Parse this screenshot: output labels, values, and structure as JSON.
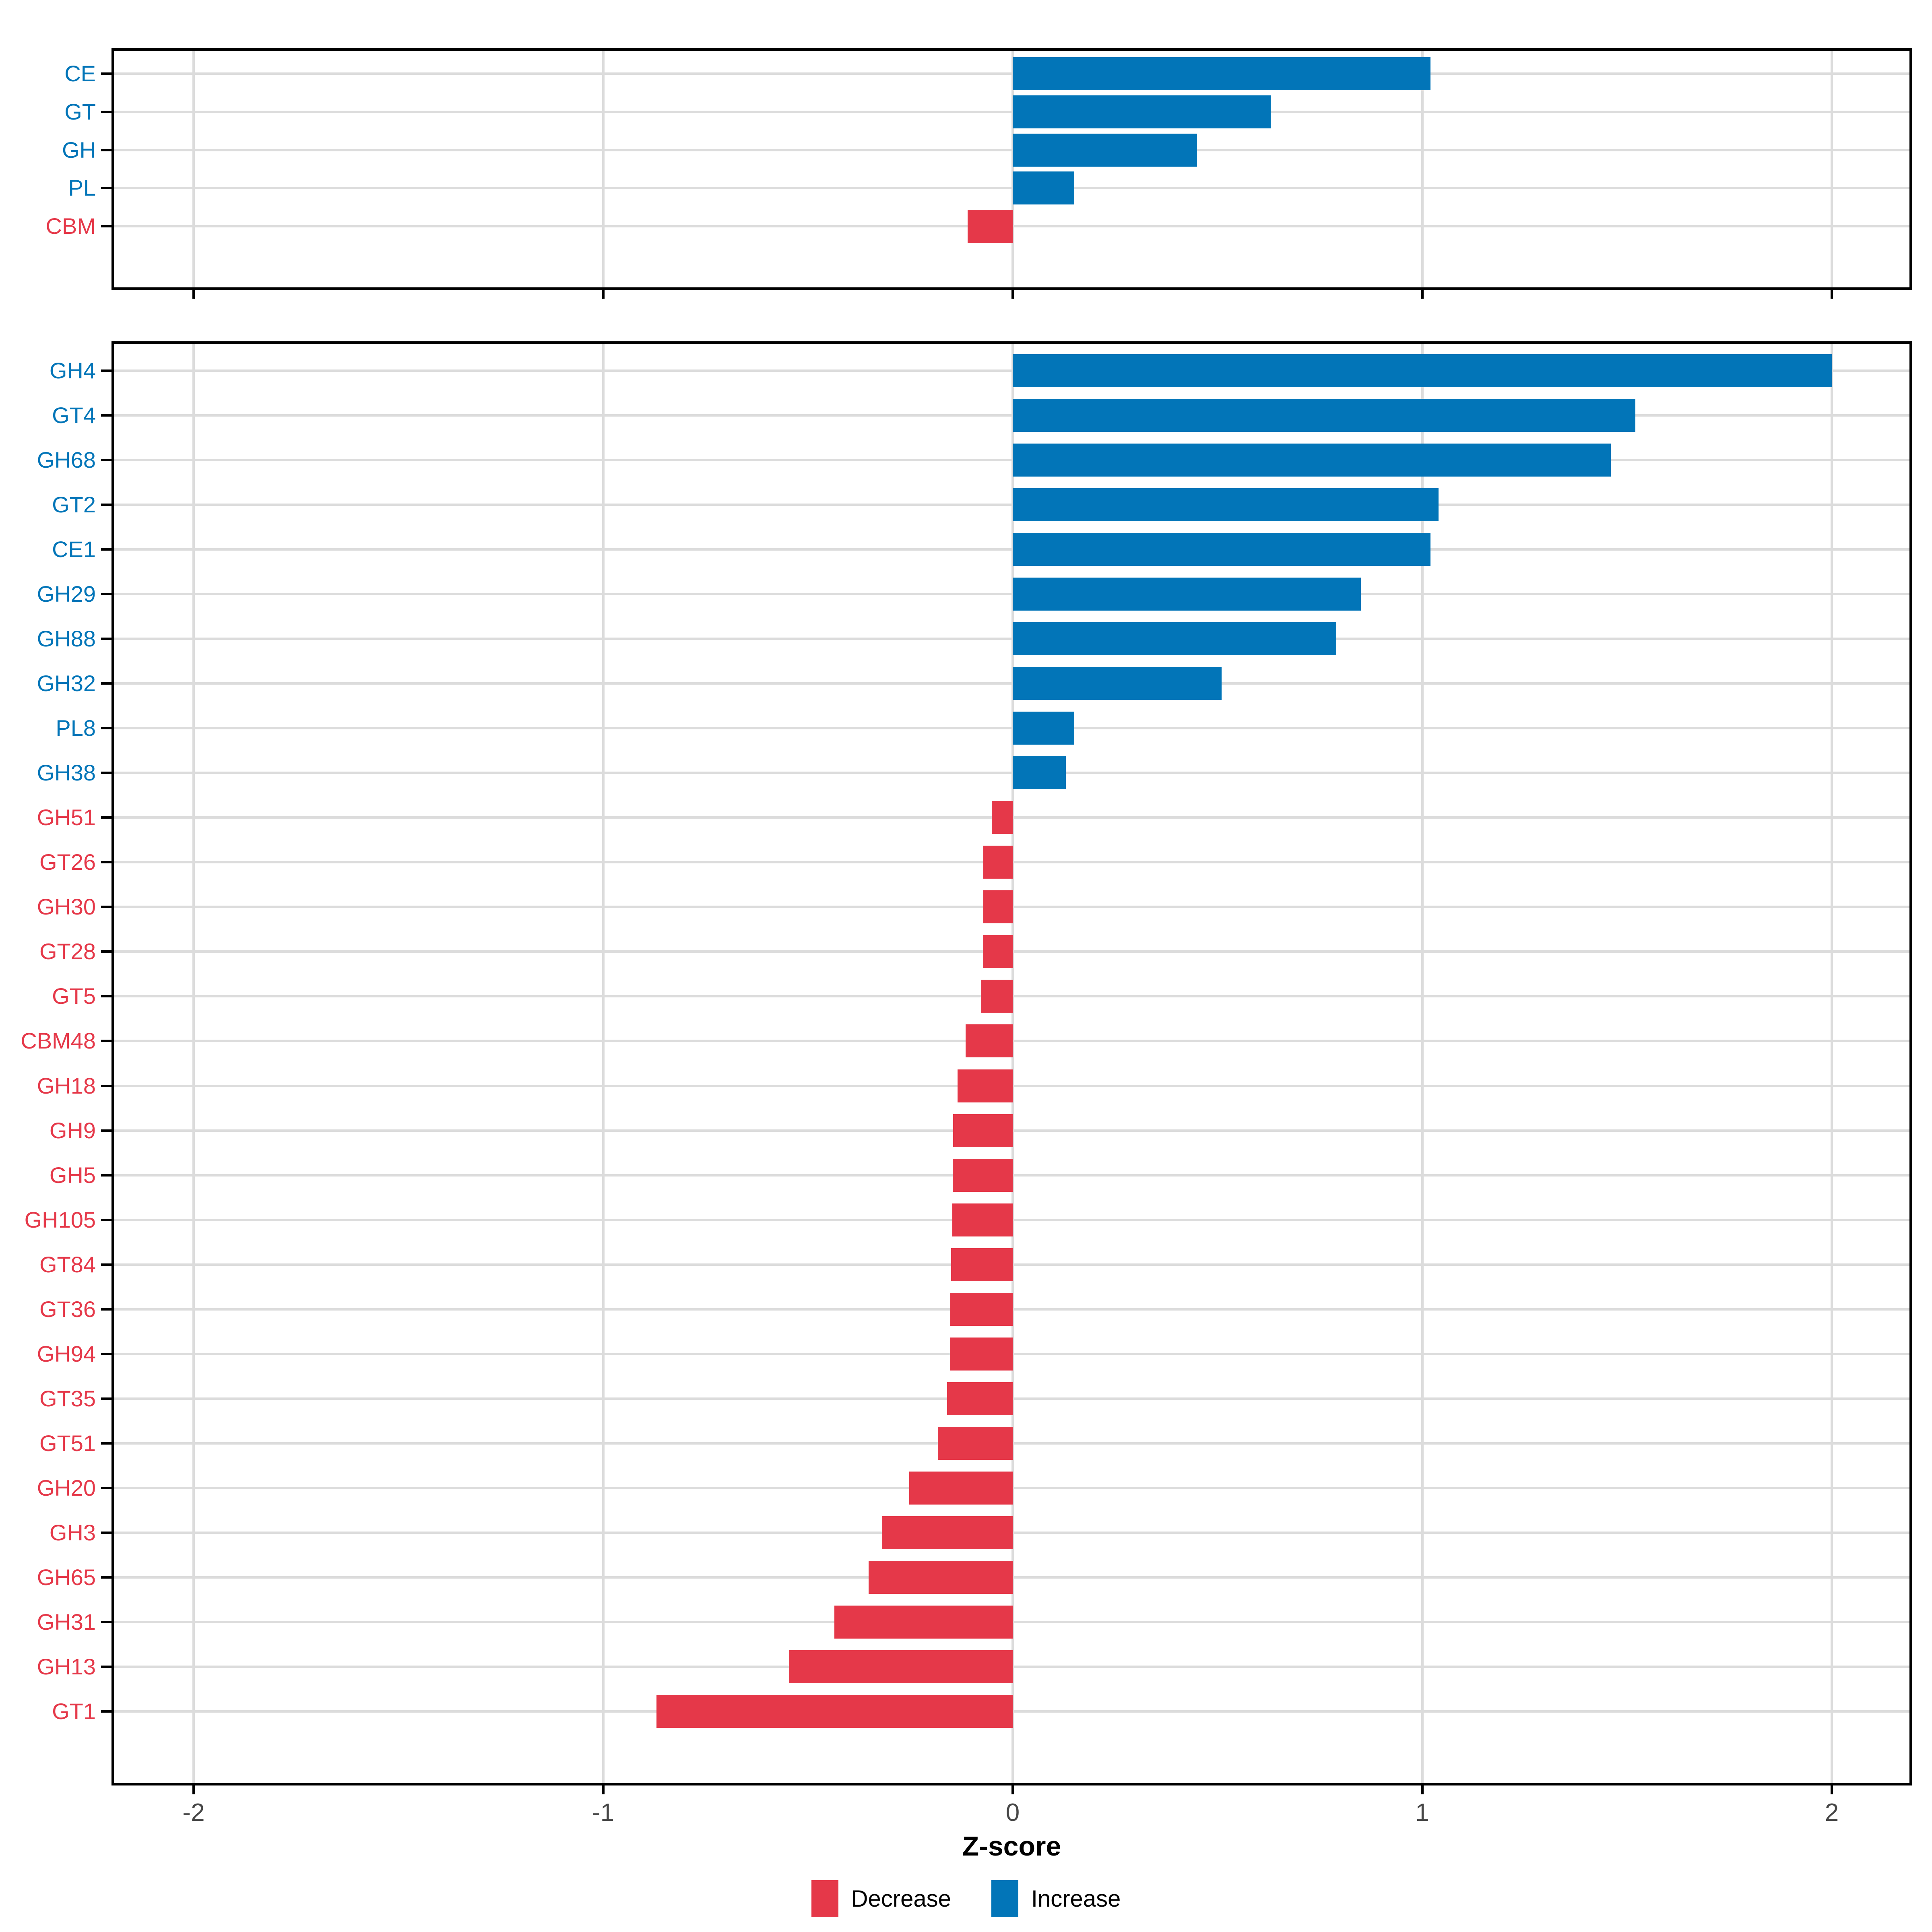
{
  "chart_data": {
    "type": "bar",
    "orientation": "horizontal",
    "title": "",
    "xlabel": "Z-score",
    "ylabel": "",
    "x_ticks": [
      -2,
      -1,
      0,
      1,
      2
    ],
    "xlim": [
      -2.2,
      2.2
    ],
    "grid": true,
    "legend": {
      "position": "bottom",
      "items": [
        {
          "label": "Decrease",
          "key": "decrease"
        },
        {
          "label": "Increase",
          "key": "increase"
        }
      ]
    },
    "colors": {
      "increase": "#0275B8",
      "decrease": "#E53849",
      "gridline": "#DCDCDC",
      "axis_text": "#474747",
      "axis_line": "#000000"
    },
    "panels": [
      {
        "name": "enzyme-class",
        "categories": [
          "CE",
          "GT",
          "GH",
          "PL",
          "CBM"
        ],
        "values": [
          1.02,
          0.63,
          0.45,
          0.15,
          -0.11
        ]
      },
      {
        "name": "enzyme-family",
        "categories": [
          "GH4",
          "GT4",
          "GH68",
          "GT2",
          "CE1",
          "GH29",
          "GH88",
          "GH32",
          "PL8",
          "GH38",
          "GH51",
          "GT26",
          "GH30",
          "GT28",
          "GT5",
          "CBM48",
          "GH18",
          "GH9",
          "GH5",
          "GH105",
          "GT84",
          "GT36",
          "GH94",
          "GT35",
          "GT51",
          "GH20",
          "GH3",
          "GH65",
          "GH31",
          "GH13",
          "GT1"
        ],
        "values": [
          2.0,
          1.52,
          1.46,
          1.04,
          1.02,
          0.85,
          0.79,
          0.51,
          0.15,
          0.13,
          -0.051,
          -0.072,
          -0.072,
          -0.073,
          -0.078,
          -0.115,
          -0.135,
          -0.145,
          -0.146,
          -0.147,
          -0.15,
          -0.152,
          -0.153,
          -0.16,
          -0.183,
          -0.253,
          -0.319,
          -0.352,
          -0.435,
          -0.546,
          -0.87
        ]
      }
    ]
  }
}
